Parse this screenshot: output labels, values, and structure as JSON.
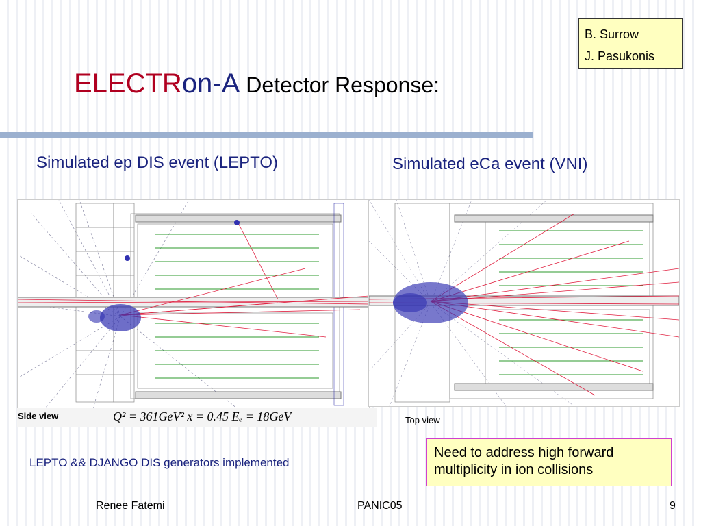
{
  "authors": [
    "B. Surrow",
    "J. Pasukonis"
  ],
  "title": {
    "part1": "ELECTR",
    "part2": "on-A",
    "part3": "Detector Response:"
  },
  "headings": {
    "left": "Simulated ep DIS event (LEPTO)",
    "right": "Simulated eCa event (VNI)"
  },
  "captions": {
    "side_view": "Side view",
    "formula": "Q² = 361GeV²   x = 0.45   Eₑ = 18GeV",
    "top_view": "Top view"
  },
  "note": "Need to address high forward multiplicity in ion collisions",
  "lepto_text": "LEPTO && DJANGO DIS generators implemented",
  "footer": {
    "author": "Renee Fatemi",
    "conference": "PANIC05",
    "page": "9"
  },
  "colors": {
    "title_red": "#b00020",
    "title_blue": "#1a237e",
    "rule": "#9bb0cf",
    "note_bg": "#ffffc0",
    "note_border": "#d040d0"
  }
}
